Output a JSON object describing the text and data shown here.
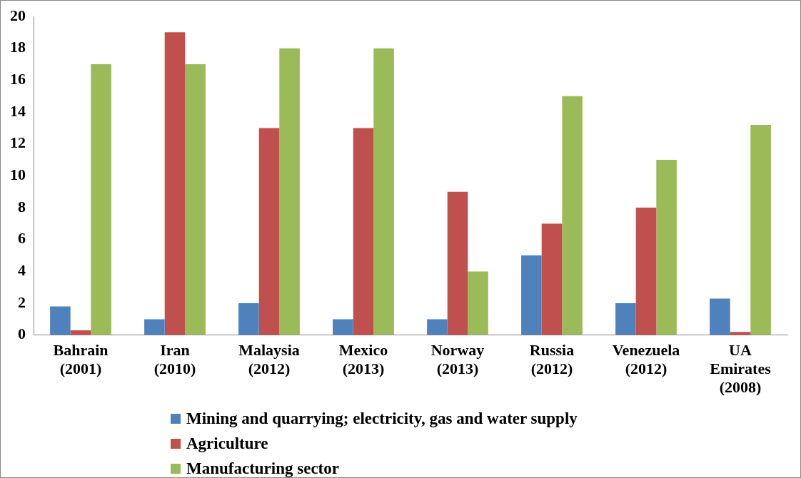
{
  "chart_data": {
    "type": "bar",
    "categories": [
      "Bahrain\n(2001)",
      "Iran\n(2010)",
      "Malaysia\n(2012)",
      "Mexico\n(2013)",
      "Norway\n(2013)",
      "Russia\n(2012)",
      "Venezuela\n(2012)",
      "UA\nEmirates\n(2008)"
    ],
    "series": [
      {
        "name": "Mining and quarrying; electricity, gas and water supply",
        "color": "#4f81bd",
        "values": [
          1.8,
          1,
          2,
          1,
          1,
          5,
          2,
          2.3
        ]
      },
      {
        "name": "Agriculture",
        "color": "#c0504d",
        "values": [
          0.3,
          19,
          13,
          13,
          9,
          7,
          8,
          0.2
        ]
      },
      {
        "name": "Manufacturing sector",
        "color": "#9bbb59",
        "values": [
          17,
          17,
          18,
          18,
          4,
          15,
          11,
          13.2
        ]
      }
    ],
    "ylim": [
      0,
      20
    ],
    "yticks": [
      0,
      2,
      4,
      6,
      8,
      10,
      12,
      14,
      16,
      18,
      20
    ],
    "grid": false,
    "legend": "bottom"
  }
}
